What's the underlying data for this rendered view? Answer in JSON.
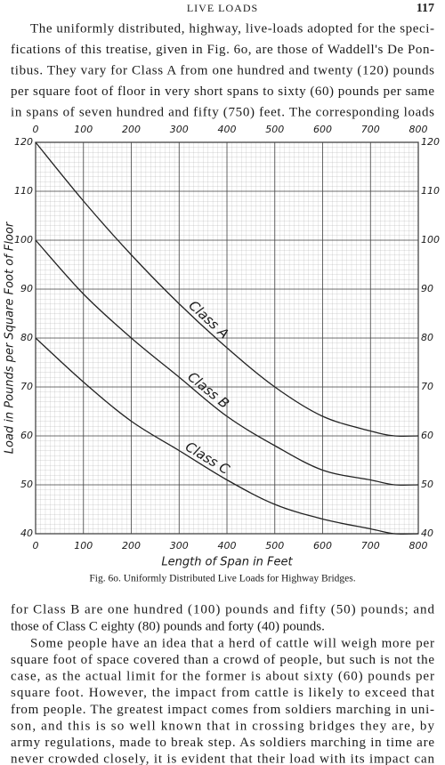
{
  "header": {
    "title": "LIVE LOADS",
    "page": "117"
  },
  "paragraph_1": [
    "The uniformly distributed, highway, live-loads adopted for the speci-",
    "fications of this treatise, given in Fig. 6o, are those of Waddell's De Pon-",
    "tibus.  They vary for Class A from one hundred and twenty (120) pounds",
    "per square foot of floor in very short spans to sixty (60) pounds per same",
    "in spans of seven hundred and fifty (750) feet.  The corresponding loads"
  ],
  "chart_data": {
    "type": "line",
    "caption": "Fig. 6o.  Uniformly Distributed Live Loads for Highway Bridges.",
    "x_label": "Length of Span in Feet",
    "y_label": "Load in Pounds per Square Foot of Floor",
    "x": [
      0,
      100,
      200,
      300,
      400,
      500,
      600,
      700,
      750,
      800
    ],
    "series": [
      {
        "name": "Class A",
        "color": "#222222",
        "values": [
          120,
          108,
          97,
          87,
          78,
          70,
          64,
          61,
          60,
          60
        ]
      },
      {
        "name": "Class B",
        "color": "#222222",
        "values": [
          100,
          89,
          80,
          72,
          64,
          58,
          53,
          51,
          50,
          50
        ]
      },
      {
        "name": "Class C",
        "color": "#222222",
        "values": [
          80,
          71,
          63,
          57,
          51,
          46,
          43,
          41,
          40,
          40
        ]
      }
    ],
    "xlim": [
      0,
      800
    ],
    "ylim": [
      40,
      120
    ],
    "xticks": [
      0,
      100,
      200,
      300,
      400,
      500,
      600,
      700,
      800
    ],
    "yticks": [
      40,
      50,
      60,
      70,
      80,
      90,
      100,
      110,
      120
    ],
    "grid": true
  },
  "paragraph_2": [
    "for Class B are one hundred (100) pounds and fifty (50) pounds; and",
    "those of Class C eighty (80) pounds and forty (40) pounds."
  ],
  "paragraph_3": [
    "Some people have an idea that a herd of cattle will weigh more per",
    "square foot of space covered than a crowd of people, but such is not the",
    "case, as the actual limit for the former is about sixty (60) pounds per",
    "square foot.  However, the impact from cattle is likely to exceed that",
    "from people.  The greatest impact comes from soldiers marching in uni-",
    "son, and this is so well known that in crossing bridges they are, by",
    "army regulations, made to break step.  As soldiers marching in time are",
    "never crowded closely, it is evident that their load with its impact can"
  ]
}
